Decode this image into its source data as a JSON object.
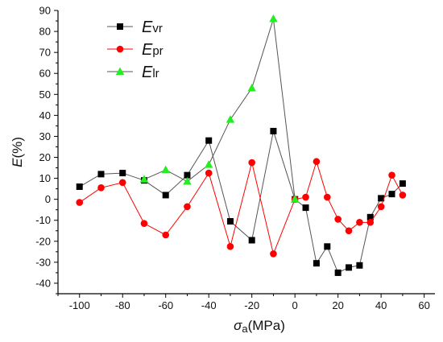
{
  "chart_data": {
    "type": "line",
    "xlabel": {
      "main": "σ",
      "sub": "a",
      "unit": "(MPa)"
    },
    "ylabel": {
      "main": "E",
      "unit": "(%)"
    },
    "xlim": [
      -110,
      65
    ],
    "ylim": [
      -45,
      90
    ],
    "xticks": [
      -100,
      -80,
      -60,
      -40,
      -20,
      0,
      20,
      40,
      60
    ],
    "yticks": [
      -40,
      -30,
      -20,
      -10,
      0,
      10,
      20,
      30,
      40,
      50,
      60,
      70,
      80,
      90
    ],
    "legend_position": "top-left",
    "series": [
      {
        "name": "vr",
        "label_main": "E",
        "label_sub": "vr",
        "marker": "square",
        "line_color": "#555555",
        "marker_color": "#000000",
        "x": [
          -100,
          -90,
          -80,
          -70,
          -60,
          -50,
          -40,
          -30,
          -20,
          -10,
          0,
          5,
          10,
          15,
          20,
          25,
          30,
          35,
          40,
          45,
          50
        ],
        "y": [
          6,
          12,
          12.5,
          9,
          2,
          11.5,
          28,
          -10.5,
          -19.5,
          32.5,
          0,
          -4,
          -30.5,
          -22.5,
          -35,
          -32.5,
          -31.5,
          -8.5,
          0.5,
          2.5,
          7.5
        ]
      },
      {
        "name": "pr",
        "label_main": "E",
        "label_sub": "pr",
        "marker": "circle",
        "line_color": "#ff0000",
        "marker_color": "#ff0000",
        "x": [
          -100,
          -90,
          -80,
          -70,
          -60,
          -50,
          -40,
          -30,
          -20,
          -10,
          0,
          5,
          10,
          15,
          20,
          25,
          30,
          35,
          40,
          45,
          50
        ],
        "y": [
          -1.5,
          5.5,
          8,
          -11.5,
          -17,
          -3.5,
          12.5,
          -22.5,
          17.5,
          -26,
          0,
          1,
          18,
          1,
          -9.5,
          -15,
          -11,
          -11,
          -3.5,
          11.5,
          2
        ]
      },
      {
        "name": "lr",
        "label_main": "E",
        "label_sub": "lr",
        "marker": "triangle",
        "line_color": "#555555",
        "marker_color": "#22ee22",
        "x": [
          -70,
          -60,
          -50,
          -40,
          -30,
          -20,
          -10,
          0
        ],
        "y": [
          9.5,
          14,
          8.5,
          16.5,
          38,
          53,
          86,
          0
        ]
      }
    ]
  }
}
